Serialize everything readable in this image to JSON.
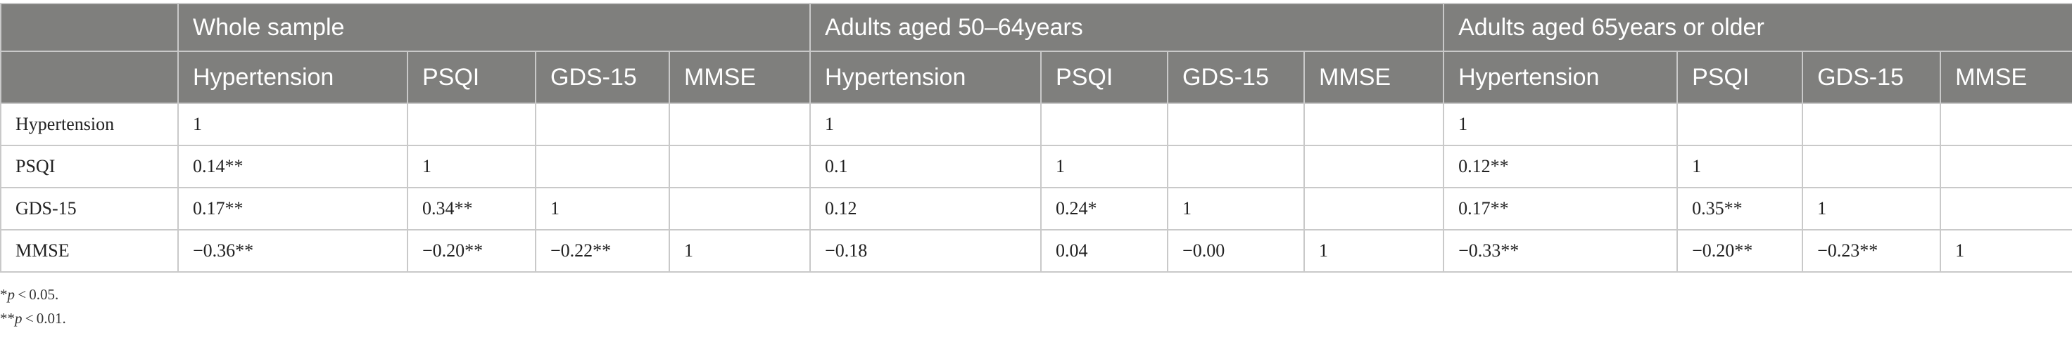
{
  "table": {
    "groups": [
      "",
      "Whole sample",
      "Adults aged 50–64years",
      "Adults aged 65years or older"
    ],
    "subheaders": [
      "Hypertension",
      "PSQI",
      "GDS-15",
      "MMSE"
    ],
    "rows": [
      {
        "label": "Hypertension",
        "cells": [
          "1",
          "",
          "",
          "",
          "1",
          "",
          "",
          "",
          "1",
          "",
          "",
          ""
        ]
      },
      {
        "label": "PSQI",
        "cells": [
          "0.14**",
          "1",
          "",
          "",
          "0.1",
          "1",
          "",
          "",
          "0.12**",
          "1",
          "",
          ""
        ]
      },
      {
        "label": "GDS-15",
        "cells": [
          "0.17**",
          "0.34**",
          "1",
          "",
          "0.12",
          "0.24*",
          "1",
          "",
          "0.17**",
          "0.35**",
          "1",
          ""
        ]
      },
      {
        "label": "MMSE",
        "cells": [
          "−0.36**",
          "−0.20**",
          "−0.22**",
          "1",
          "−0.18",
          "0.04",
          "−0.00",
          "1",
          "−0.33**",
          "−0.20**",
          "−0.23**",
          "1"
        ]
      }
    ]
  },
  "notes": {
    "n1_prefix": "*",
    "n1_var": "p",
    "n1_rest": " < 0.05.",
    "n2_prefix": "**",
    "n2_var": "p",
    "n2_rest": " < 0.01."
  }
}
